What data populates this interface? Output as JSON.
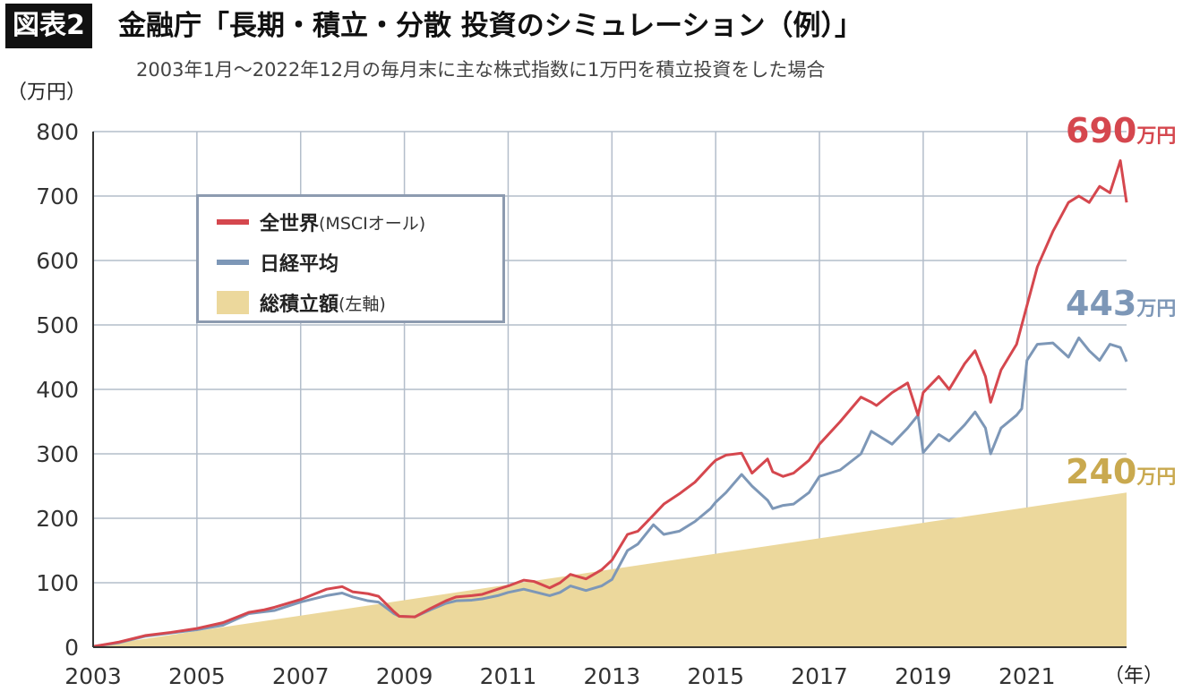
{
  "header": {
    "tag": "図表2",
    "title": "金融庁「長期・積立・分散 投資のシミュレーション（例）」",
    "subtitle": "2003年1月〜2022年12月の毎月末に主な株式指数に1万円を積立投資をした場合"
  },
  "colors": {
    "world": "#d5474e",
    "nikkei": "#7d97b7",
    "cumulative": "#ecd89c",
    "grid": "#b3bdca",
    "legend_border": "#8d9bb0",
    "cum_label": "#c9a94f"
  },
  "chart_data": {
    "type": "line",
    "ylabel": "（万円）",
    "xlabel": "（年）",
    "xlim": [
      2003,
      2022.92
    ],
    "ylim": [
      0,
      800
    ],
    "y_ticks": [
      "0",
      "100",
      "200",
      "300",
      "400",
      "500",
      "600",
      "700",
      "800"
    ],
    "x_ticks": [
      "2003",
      "2005",
      "2007",
      "2009",
      "2011",
      "2013",
      "2015",
      "2017",
      "2019",
      "2021"
    ],
    "legend": {
      "placement": "top-left",
      "entries": [
        {
          "name": "全世界",
          "note": "(MSCIオール)"
        },
        {
          "name": "日経平均",
          "note": ""
        },
        {
          "name": "総積立額",
          "note": "(左軸)"
        }
      ]
    },
    "series": [
      {
        "name": "全世界(MSCIオール)",
        "kind": "line",
        "x": [
          2003,
          2003.5,
          2004,
          2004.5,
          2005,
          2005.5,
          2006,
          2006.3,
          2006.5,
          2007,
          2007.5,
          2007.8,
          2008,
          2008.3,
          2008.5,
          2008.8,
          2008.9,
          2009.2,
          2009.5,
          2009.8,
          2010,
          2010.3,
          2010.5,
          2010.8,
          2011,
          2011.3,
          2011.5,
          2011.8,
          2012,
          2012.2,
          2012.5,
          2012.8,
          2013,
          2013.3,
          2013.5,
          2013.8,
          2014,
          2014.3,
          2014.6,
          2014.9,
          2015,
          2015.2,
          2015.5,
          2015.7,
          2016,
          2016.1,
          2016.3,
          2016.5,
          2016.8,
          2017,
          2017.4,
          2017.8,
          2018,
          2018.1,
          2018.4,
          2018.7,
          2018.9,
          2019,
          2019.3,
          2019.5,
          2019.8,
          2020,
          2020.2,
          2020.3,
          2020.5,
          2020.8,
          2020.9,
          2021,
          2021.2,
          2021.5,
          2021.8,
          2022,
          2022.2,
          2022.4,
          2022.6,
          2022.8,
          2022.92
        ],
        "values": [
          1,
          8,
          18,
          23,
          29,
          38,
          54,
          58,
          62,
          74,
          90,
          94,
          86,
          83,
          79,
          55,
          48,
          47,
          60,
          72,
          78,
          80,
          82,
          90,
          95,
          104,
          102,
          92,
          100,
          113,
          106,
          120,
          135,
          175,
          180,
          205,
          222,
          238,
          256,
          282,
          290,
          298,
          301,
          270,
          292,
          272,
          265,
          270,
          290,
          315,
          350,
          388,
          380,
          375,
          395,
          410,
          360,
          395,
          420,
          400,
          440,
          460,
          420,
          380,
          430,
          470,
          500,
          530,
          590,
          645,
          690,
          700,
          690,
          715,
          705,
          755,
          690
        ]
      },
      {
        "name": "日経平均",
        "kind": "line",
        "x": [
          2003,
          2003.5,
          2004,
          2004.5,
          2005,
          2005.5,
          2006,
          2006.3,
          2006.5,
          2007,
          2007.5,
          2007.8,
          2008,
          2008.3,
          2008.5,
          2008.8,
          2008.9,
          2009.2,
          2009.5,
          2009.8,
          2010,
          2010.3,
          2010.5,
          2010.8,
          2011,
          2011.3,
          2011.5,
          2011.8,
          2012,
          2012.2,
          2012.5,
          2012.8,
          2013,
          2013.3,
          2013.5,
          2013.8,
          2014,
          2014.3,
          2014.6,
          2014.9,
          2015,
          2015.2,
          2015.5,
          2015.7,
          2016,
          2016.1,
          2016.3,
          2016.5,
          2016.8,
          2017,
          2017.4,
          2017.8,
          2018,
          2018.1,
          2018.4,
          2018.7,
          2018.9,
          2019,
          2019.3,
          2019.5,
          2019.8,
          2020,
          2020.2,
          2020.3,
          2020.5,
          2020.8,
          2020.9,
          2021,
          2021.2,
          2021.5,
          2021.8,
          2022,
          2022.2,
          2022.4,
          2022.6,
          2022.8,
          2022.92
        ],
        "values": [
          1,
          7,
          17,
          22,
          27,
          34,
          52,
          55,
          57,
          70,
          80,
          84,
          78,
          72,
          70,
          52,
          48,
          47,
          58,
          68,
          72,
          73,
          75,
          80,
          85,
          90,
          86,
          80,
          85,
          95,
          88,
          95,
          105,
          150,
          160,
          190,
          175,
          180,
          195,
          215,
          225,
          240,
          268,
          250,
          228,
          215,
          220,
          222,
          240,
          265,
          275,
          300,
          335,
          330,
          315,
          340,
          360,
          302,
          330,
          320,
          345,
          365,
          340,
          300,
          340,
          360,
          370,
          445,
          470,
          472,
          450,
          480,
          460,
          445,
          470,
          465,
          443
        ]
      },
      {
        "name": "総積立額",
        "kind": "area",
        "x": [
          2003,
          2022.92
        ],
        "values": [
          1,
          240
        ]
      }
    ],
    "annotations": [
      {
        "series": "world",
        "value": "690",
        "unit": "万円"
      },
      {
        "series": "nikkei",
        "value": "443",
        "unit": "万円"
      },
      {
        "series": "cumulative",
        "value": "240",
        "unit": "万円"
      }
    ]
  }
}
